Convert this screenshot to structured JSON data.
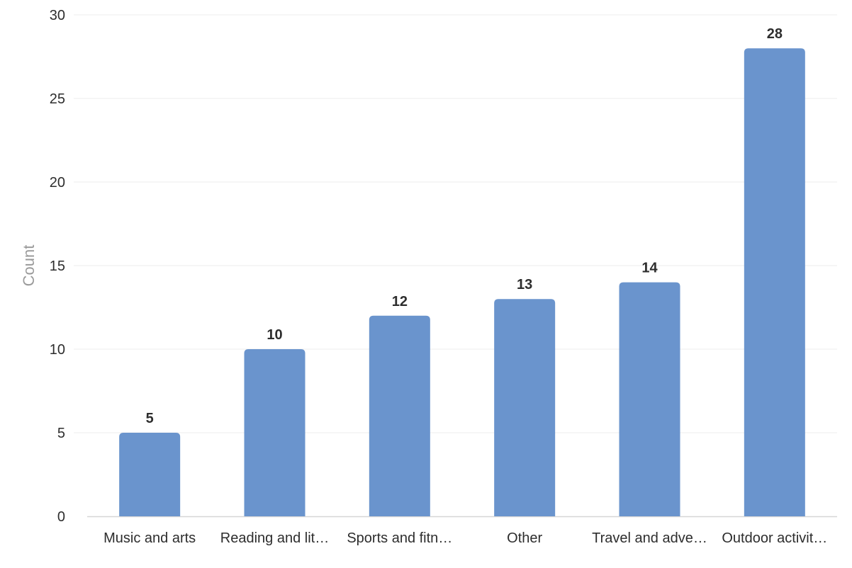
{
  "chart_data": {
    "type": "bar",
    "ylabel": "Count",
    "categories": [
      "Music and arts",
      "Reading and lit…",
      "Sports and fitn…",
      "Other",
      "Travel and adve…",
      "Outdoor activit…"
    ],
    "values": [
      5,
      10,
      12,
      13,
      14,
      28
    ],
    "ylim": [
      0,
      30
    ],
    "yticks": [
      0,
      5,
      10,
      15,
      20,
      25,
      30
    ],
    "grid": true,
    "data_labels": true,
    "bar_color": "#6a94cd",
    "grid_color": "#ececec",
    "axis_color": "#d6d6d6"
  }
}
